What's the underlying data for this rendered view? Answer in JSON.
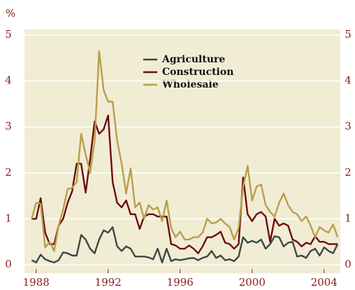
{
  "chart_data": {
    "type": "line",
    "y_label": "%",
    "x": [
      1987.75,
      1988,
      1988.25,
      1988.5,
      1988.75,
      1989,
      1989.25,
      1989.5,
      1989.75,
      1990,
      1990.25,
      1990.5,
      1990.75,
      1991,
      1991.25,
      1991.5,
      1991.75,
      1992,
      1992.25,
      1992.5,
      1992.75,
      1993,
      1993.25,
      1993.5,
      1993.75,
      1994,
      1994.25,
      1994.5,
      1994.75,
      1995,
      1995.25,
      1995.5,
      1995.75,
      1996,
      1996.25,
      1996.5,
      1996.75,
      1997,
      1997.25,
      1997.5,
      1997.75,
      1998,
      1998.25,
      1998.5,
      1998.75,
      1999,
      1999.25,
      1999.5,
      1999.75,
      2000,
      2000.25,
      2000.5,
      2000.75,
      2001,
      2001.25,
      2001.5,
      2001.75,
      2002,
      2002.25,
      2002.5,
      2002.75,
      2003,
      2003.25,
      2003.5,
      2003.75,
      2004,
      2004.25,
      2004.5,
      2004.75
    ],
    "series": [
      {
        "name": "Agriculture",
        "color": "#3b4843",
        "values": [
          0.1,
          0.05,
          0.22,
          0.12,
          0.08,
          0.05,
          0.1,
          0.27,
          0.25,
          0.2,
          0.2,
          0.65,
          0.55,
          0.35,
          0.25,
          0.55,
          0.75,
          0.7,
          0.82,
          0.4,
          0.3,
          0.4,
          0.35,
          0.18,
          0.18,
          0.18,
          0.16,
          0.12,
          0.35,
          0.05,
          0.35,
          0.08,
          0.12,
          0.1,
          0.12,
          0.14,
          0.15,
          0.1,
          0.15,
          0.18,
          0.3,
          0.15,
          0.2,
          0.1,
          0.12,
          0.08,
          0.18,
          0.6,
          0.48,
          0.52,
          0.48,
          0.55,
          0.35,
          0.45,
          0.62,
          0.6,
          0.4,
          0.48,
          0.5,
          0.18,
          0.2,
          0.15,
          0.3,
          0.35,
          0.2,
          0.38,
          0.3,
          0.25,
          0.45
        ]
      },
      {
        "name": "Construction",
        "color": "#6b0d0d",
        "values": [
          1.0,
          1.0,
          1.45,
          0.7,
          0.45,
          0.45,
          0.85,
          1.0,
          1.35,
          1.6,
          2.2,
          2.2,
          1.57,
          2.3,
          3.12,
          2.85,
          2.95,
          3.25,
          1.8,
          1.35,
          1.25,
          1.4,
          1.1,
          1.1,
          0.78,
          1.05,
          1.1,
          1.1,
          1.05,
          1.05,
          1.05,
          0.45,
          0.42,
          0.35,
          0.35,
          0.42,
          0.35,
          0.25,
          0.4,
          0.6,
          0.6,
          0.65,
          0.72,
          0.48,
          0.45,
          0.35,
          0.45,
          1.9,
          1.1,
          0.95,
          1.1,
          1.15,
          1.05,
          0.5,
          1.0,
          0.85,
          0.9,
          0.85,
          0.55,
          0.5,
          0.4,
          0.48,
          0.45,
          0.62,
          0.5,
          0.5,
          0.45,
          0.45,
          0.45
        ]
      },
      {
        "name": "Wholesale",
        "color": "#b89f4a",
        "values": [
          1.0,
          1.35,
          1.33,
          0.38,
          0.5,
          0.3,
          0.85,
          1.2,
          1.65,
          1.67,
          1.8,
          2.85,
          2.4,
          2.0,
          2.7,
          4.65,
          3.8,
          3.55,
          3.55,
          2.7,
          2.2,
          1.55,
          2.1,
          1.25,
          1.35,
          1.0,
          1.3,
          1.2,
          1.25,
          0.95,
          1.4,
          0.8,
          0.6,
          0.72,
          0.55,
          0.55,
          0.6,
          0.6,
          0.7,
          1.0,
          0.9,
          0.92,
          1.0,
          0.9,
          0.82,
          0.55,
          0.8,
          1.7,
          2.15,
          1.4,
          1.7,
          1.75,
          1.3,
          1.15,
          1.05,
          1.35,
          1.55,
          1.3,
          1.15,
          1.1,
          0.95,
          1.05,
          0.85,
          0.6,
          0.82,
          0.75,
          0.7,
          0.88,
          0.6
        ]
      }
    ],
    "xlim": [
      1987.35,
      2004.9
    ],
    "xticks": [
      1988,
      1992,
      1996,
      2000,
      2004
    ],
    "ylim": [
      0,
      5
    ],
    "yticks": [
      0,
      1,
      2,
      3,
      4,
      5
    ],
    "y2lim": [
      0,
      5
    ],
    "y2ticks": [
      0,
      1,
      2,
      3,
      4,
      5
    ],
    "grid": true
  }
}
